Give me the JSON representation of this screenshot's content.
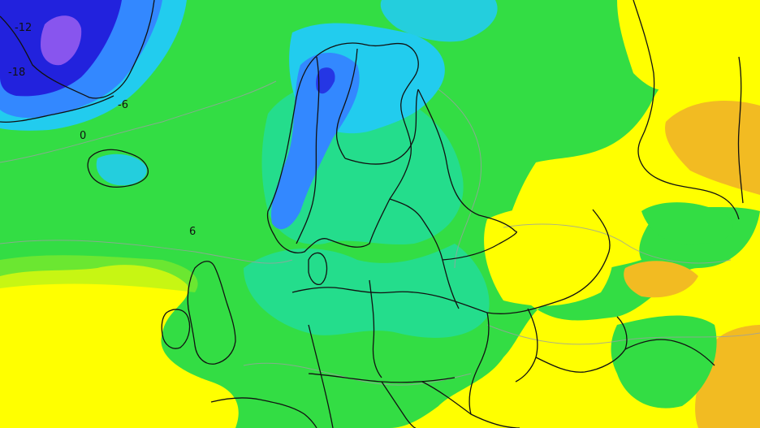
{
  "map": {
    "contour_labels": [
      {
        "id": "neg12",
        "text": "-12"
      },
      {
        "id": "neg18",
        "text": "-18"
      },
      {
        "id": "neg6",
        "text": "-6"
      },
      {
        "id": "zero",
        "text": "0"
      },
      {
        "id": "pos6",
        "text": "6"
      }
    ],
    "colors": {
      "deep_blue": "#2222dd",
      "violet": "#8855ee",
      "blue": "#3388ff",
      "cyan": "#22ccee",
      "aqua_green": "#22dd99",
      "green": "#33dd44",
      "yellow_green": "#99ee22",
      "yellow": "#ffff00",
      "orange": "#f2bb22",
      "border": "#111111"
    }
  }
}
